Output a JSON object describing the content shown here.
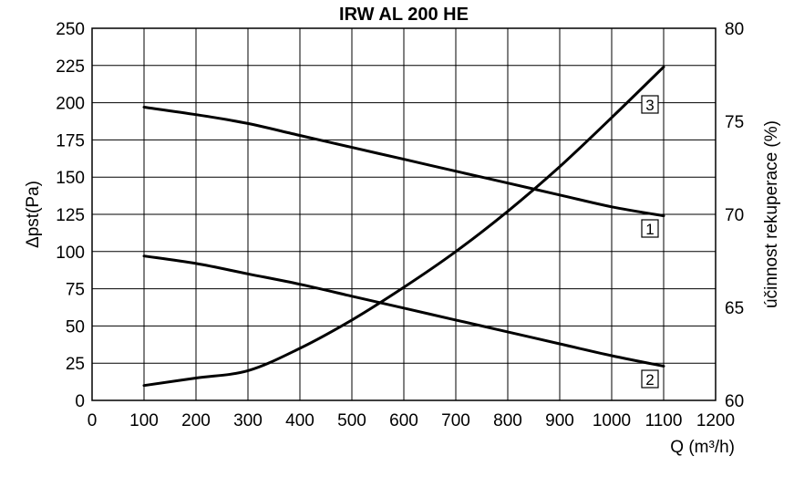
{
  "chart_data": {
    "type": "line",
    "title": "IRW AL 200 HE",
    "xlabel": "Q (m³/h)",
    "ylabel": "Δpst(Pa)",
    "y2label": "účinnost rekuperace (%)",
    "xlim": [
      0,
      1200
    ],
    "ylim": [
      0,
      250
    ],
    "y2lim": [
      60,
      80
    ],
    "grid": true,
    "x_ticks": [
      0,
      100,
      200,
      300,
      400,
      500,
      600,
      700,
      800,
      900,
      1000,
      1100,
      1200
    ],
    "y_ticks": [
      0,
      25,
      50,
      75,
      100,
      125,
      150,
      175,
      200,
      225,
      250
    ],
    "y2_ticks": [
      60,
      65,
      70,
      75,
      80
    ],
    "series": [
      {
        "name": "1",
        "axis": "left",
        "x": [
          100,
          200,
          300,
          400,
          500,
          600,
          700,
          800,
          900,
          1000,
          1100
        ],
        "values": [
          197,
          192,
          186,
          178,
          170,
          162,
          154,
          146,
          138,
          130,
          124
        ]
      },
      {
        "name": "2",
        "axis": "left",
        "x": [
          100,
          200,
          300,
          400,
          500,
          600,
          700,
          800,
          900,
          1000,
          1100
        ],
        "values": [
          97,
          92,
          85,
          78,
          70,
          62,
          54,
          46,
          38,
          30,
          23
        ]
      },
      {
        "name": "3",
        "axis": "left",
        "x": [
          100,
          200,
          300,
          400,
          500,
          600,
          700,
          800,
          900,
          1000,
          1100
        ],
        "values": [
          10,
          15,
          20,
          35,
          54,
          76,
          100,
          127,
          157,
          190,
          224
        ]
      }
    ]
  }
}
